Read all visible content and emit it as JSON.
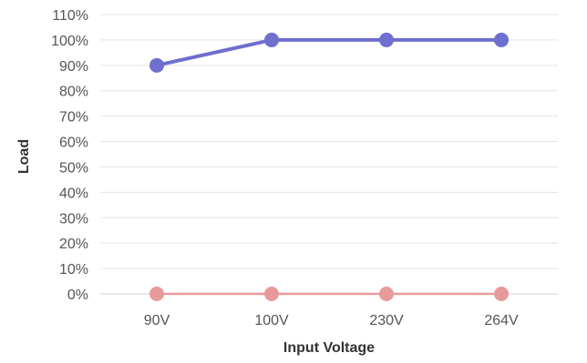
{
  "chart_data": {
    "type": "line",
    "title": "",
    "xlabel": "Input Voltage",
    "ylabel": "Load",
    "categories": [
      "90V",
      "100V",
      "230V",
      "264V"
    ],
    "ylim": [
      0,
      110
    ],
    "y_ticks": [
      0,
      10,
      20,
      30,
      40,
      50,
      60,
      70,
      80,
      90,
      100,
      110
    ],
    "y_tick_suffix": "%",
    "grid": true,
    "legend": "none",
    "series": [
      {
        "values": [
          90,
          100,
          100,
          100
        ],
        "color": "#6f6fce"
      },
      {
        "values": [
          0,
          0,
          0,
          0
        ],
        "color": "#e89a9a"
      }
    ],
    "grid_color": "#e4e4e4",
    "axis_color": "#d0d0d0"
  }
}
